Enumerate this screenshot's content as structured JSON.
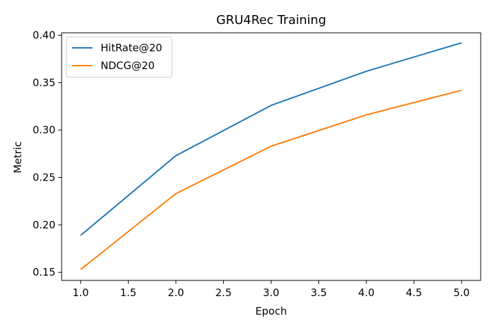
{
  "chart_data": {
    "type": "line",
    "title": "GRU4Rec Training",
    "xlabel": "Epoch",
    "ylabel": "Metric",
    "x": [
      1,
      2,
      3,
      4,
      5
    ],
    "xlim": [
      0.8,
      5.2
    ],
    "ylim": [
      0.1415,
      0.4025
    ],
    "xticks": [
      1.0,
      1.5,
      2.0,
      2.5,
      3.0,
      3.5,
      4.0,
      4.5,
      5.0
    ],
    "xtick_labels": [
      "1.0",
      "1.5",
      "2.0",
      "2.5",
      "3.0",
      "3.5",
      "4.0",
      "4.5",
      "5.0"
    ],
    "yticks": [
      0.15,
      0.2,
      0.25,
      0.3,
      0.35,
      0.4
    ],
    "ytick_labels": [
      "0.15",
      "0.20",
      "0.25",
      "0.30",
      "0.35",
      "0.40"
    ],
    "grid": false,
    "legend_position": "top-left",
    "series": [
      {
        "name": "HitRate@20",
        "color": "#1f77b4",
        "values": [
          0.189,
          0.273,
          0.326,
          0.362,
          0.392
        ]
      },
      {
        "name": "NDCG@20",
        "color": "#ff7f0e",
        "values": [
          0.153,
          0.233,
          0.283,
          0.316,
          0.342
        ]
      }
    ]
  }
}
